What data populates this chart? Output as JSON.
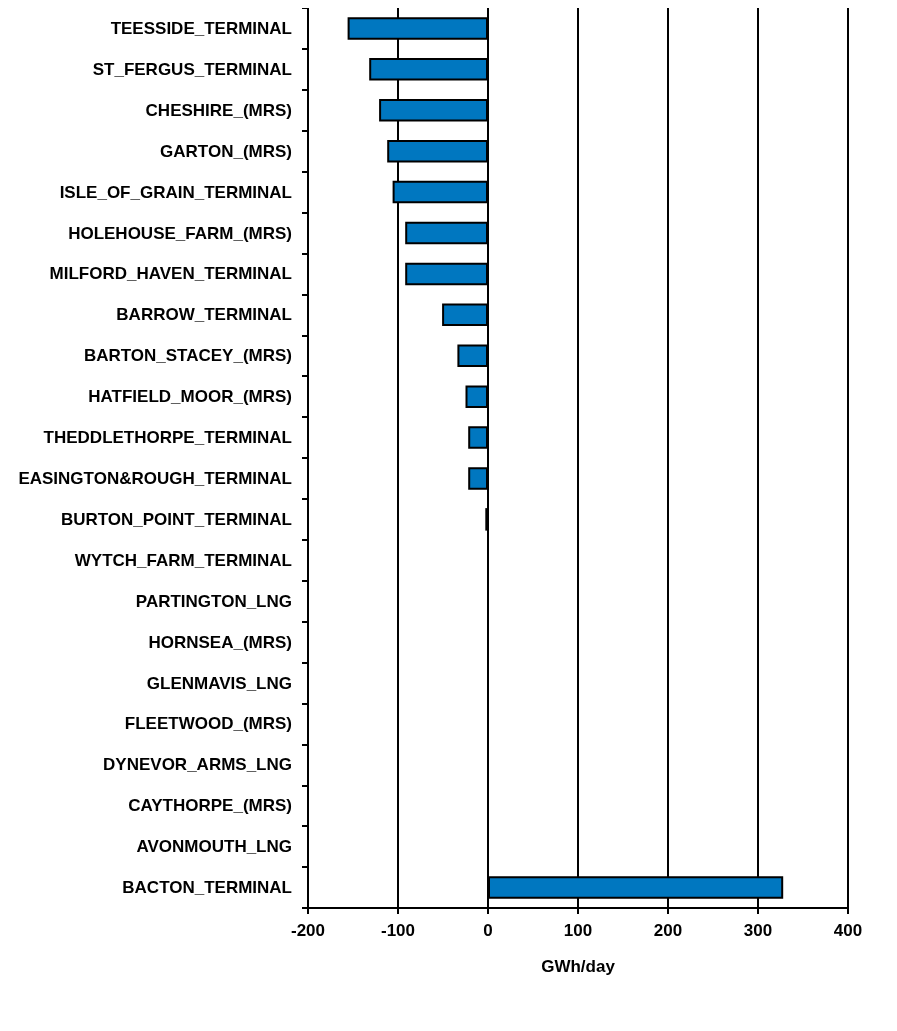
{
  "chart_data": {
    "type": "bar",
    "orientation": "horizontal",
    "xlabel": "GWh/day",
    "categories": [
      "TEESSIDE_TERMINAL",
      "ST_FERGUS_TERMINAL",
      "CHESHIRE_(MRS)",
      "GARTON_(MRS)",
      "ISLE_OF_GRAIN_TERMINAL",
      "HOLEHOUSE_FARM_(MRS)",
      "MILFORD_HAVEN_TERMINAL",
      "BARROW_TERMINAL",
      "BARTON_STACEY_(MRS)",
      "HATFIELD_MOOR_(MRS)",
      "THEDDLETHORPE_TERMINAL",
      "EASINGTON&ROUGH_TERMINAL",
      "BURTON_POINT_TERMINAL",
      "WYTCH_FARM_TERMINAL",
      "PARTINGTON_LNG",
      "HORNSEA_(MRS)",
      "GLENMAVIS_LNG",
      "FLEETWOOD_(MRS)",
      "DYNEVOR_ARMS_LNG",
      "CAYTHORPE_(MRS)",
      "AVONMOUTH_LNG",
      "BACTON_TERMINAL"
    ],
    "values": [
      -156,
      -132,
      -121,
      -112,
      -106,
      -92,
      -92,
      -51,
      -34,
      -25,
      -22,
      -22,
      -3,
      0,
      0,
      0,
      0,
      0,
      0,
      0,
      0,
      328
    ],
    "color": "#0077c0",
    "xlim": [
      -200,
      400
    ],
    "xticks": [
      -200,
      -100,
      0,
      100,
      200,
      300,
      400
    ],
    "grid": "x"
  }
}
